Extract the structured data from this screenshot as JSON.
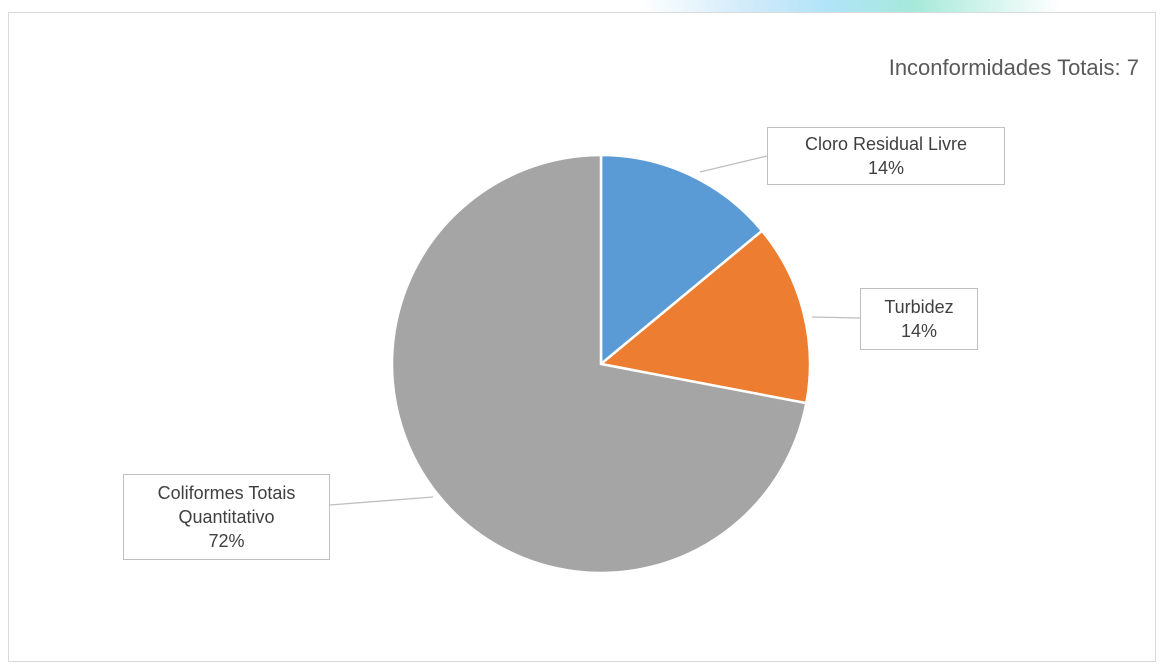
{
  "chart_data": {
    "type": "pie",
    "title": "Inconformidades Totais: 7",
    "slices": [
      {
        "label": "Cloro Residual Livre",
        "value": 14,
        "percent_label": "14%",
        "color": "#5b9bd5"
      },
      {
        "label": "Turbidez",
        "value": 14,
        "percent_label": "14%",
        "color": "#ed7d31"
      },
      {
        "label": "Coliformes Totais Quantitativo",
        "value": 72,
        "percent_label": "72%",
        "color": "#a5a5a5"
      }
    ],
    "legend": "none",
    "data_labels": "callout"
  }
}
